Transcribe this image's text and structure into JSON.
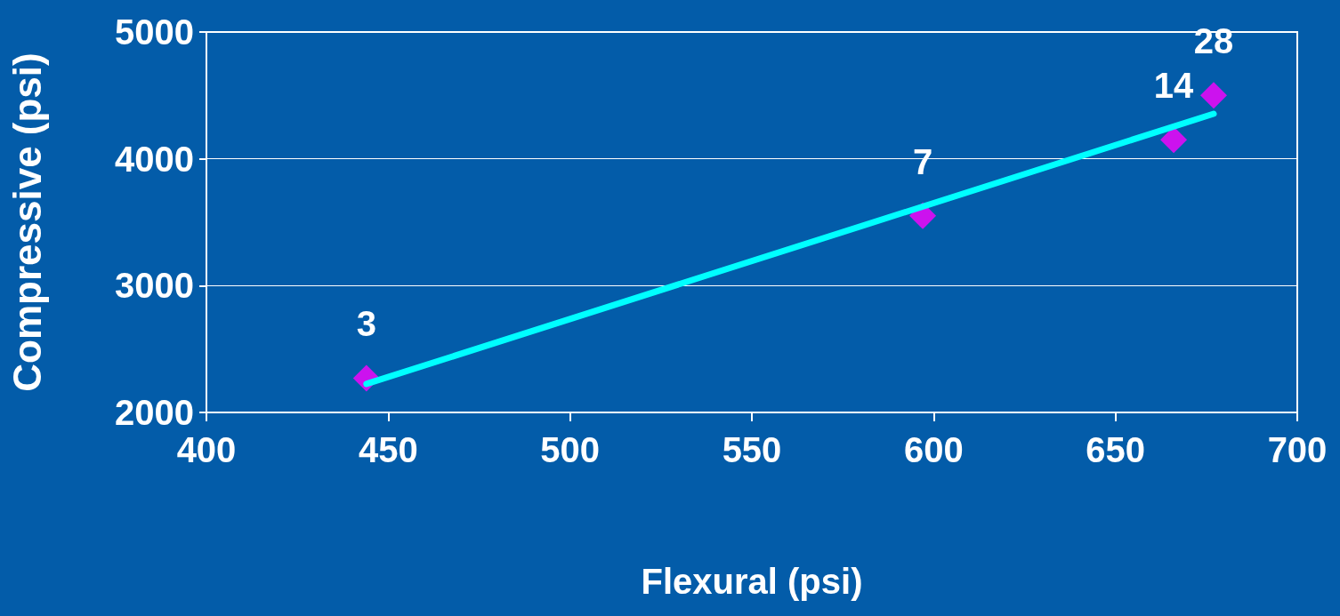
{
  "chart_data": {
    "type": "scatter",
    "xlabel": "Flexural (psi)",
    "ylabel": "Compressive (psi)",
    "xlim": [
      400,
      700
    ],
    "xticks": [
      400,
      450,
      500,
      550,
      600,
      650,
      700
    ],
    "ylim": [
      2000,
      5000
    ],
    "yticks": [
      2000,
      3000,
      4000,
      5000
    ],
    "grid": "y",
    "marker": "diamond",
    "annotations": [
      {
        "text": "3",
        "x": 444,
        "y": 2270
      },
      {
        "text": "7",
        "x": 597,
        "y": 3550
      },
      {
        "text": "14",
        "x": 666,
        "y": 4150
      },
      {
        "text": "28",
        "x": 677,
        "y": 4500
      }
    ],
    "series": [
      {
        "color": "#ff00ff",
        "x": [
          444,
          597,
          666,
          677
        ],
        "values": [
          2270,
          3550,
          4150,
          4500
        ]
      },
      {
        "type": "line",
        "color": "#00ffff",
        "line_style": "solid",
        "marker": "none",
        "x": [
          444,
          677
        ],
        "values": [
          2225,
          4355
        ]
      }
    ]
  }
}
